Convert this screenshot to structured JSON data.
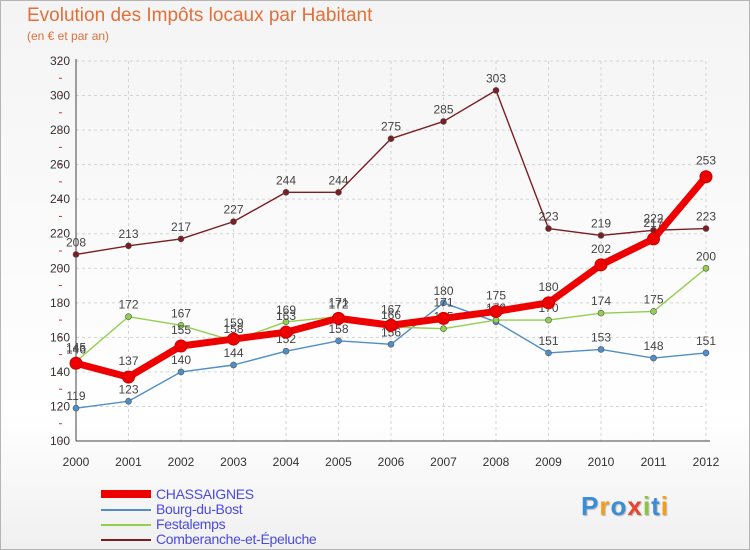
{
  "title": "Evolution des Impôts locaux par Habitant",
  "subtitle": "(en € et par an)",
  "logo": {
    "letters": [
      "P",
      "r",
      "o",
      "x",
      "i",
      "t",
      "i"
    ],
    "colors": [
      "#3a8ed8",
      "#f39c1e",
      "#3a8ed8",
      "#e8452c",
      "#8cc63f",
      "#3a8ed8",
      "#f39c1e"
    ]
  },
  "chart_data": {
    "type": "line",
    "title": "Evolution des Impôts locaux par Habitant",
    "subtitle": "(en € et par an)",
    "x": [
      "2000",
      "2001",
      "2002",
      "2003",
      "2004",
      "2005",
      "2006",
      "2007",
      "2008",
      "2009",
      "2010",
      "2011",
      "2012"
    ],
    "yticks": [
      "100",
      "120",
      "140",
      "160",
      "180",
      "200",
      "220",
      "240",
      "260",
      "280",
      "300",
      "320"
    ],
    "ylim": [
      100,
      320
    ],
    "grid": true,
    "legend_position": "bottom-left",
    "series": [
      {
        "name": "Comberanche-et-Épeluche",
        "color": "#7a1e22",
        "values": [
          208,
          213,
          217,
          227,
          244,
          244,
          275,
          285,
          303,
          223,
          219,
          222,
          223
        ],
        "labels": [
          "208",
          "213",
          "217",
          "227",
          "244",
          "244",
          "275",
          "285",
          "303",
          "223",
          "219",
          "222",
          "223"
        ]
      },
      {
        "name": "Bourg-du-Bost",
        "color": "#4f8ec6",
        "values": [
          119,
          123,
          140,
          144,
          152,
          158,
          156,
          180,
          169,
          151,
          153,
          148,
          151
        ],
        "labels": [
          "119",
          "123",
          "140",
          "144",
          "152",
          "158",
          "156",
          "180",
          "169",
          "151",
          "153",
          "148",
          "151"
        ]
      },
      {
        "name": "Festalemps",
        "color": "#92d050",
        "values": [
          146,
          172,
          167,
          158,
          169,
          172,
          166,
          165,
          170,
          170,
          174,
          175,
          200
        ],
        "labels": [
          "146",
          "172",
          "167",
          "158",
          "169",
          "172",
          "166",
          "165",
          "170",
          "170",
          "174",
          "175",
          "200"
        ]
      },
      {
        "name": "CHASSAIGNES",
        "color": "#ee0000",
        "values": [
          145,
          137,
          155,
          159,
          163,
          171,
          167,
          171,
          175,
          180,
          202,
          217,
          253
        ],
        "labels": [
          "145",
          "137",
          "155",
          "159",
          "163",
          "171",
          "167",
          "171",
          "175",
          "180",
          "202",
          "217",
          "253"
        ]
      }
    ],
    "legend_order": [
      "CHASSAIGNES",
      "Bourg-du-Bost",
      "Festalemps",
      "Comberanche-et-Épeluche"
    ]
  }
}
